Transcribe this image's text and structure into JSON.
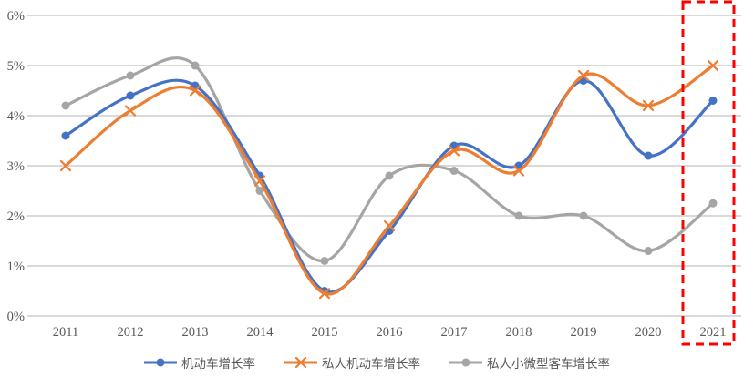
{
  "chart_data": {
    "type": "line",
    "title": "",
    "xlabel": "",
    "ylabel": "",
    "x_categories": [
      "2011",
      "2012",
      "2013",
      "2014",
      "2015",
      "2016",
      "2017",
      "2018",
      "2019",
      "2020",
      "2021"
    ],
    "y_ticks": [
      "0%",
      "1%",
      "2%",
      "3%",
      "4%",
      "5%",
      "6%"
    ],
    "ylim": [
      0,
      6
    ],
    "unit": "%",
    "grid": true,
    "line_style": "smooth",
    "legend_position": "bottom",
    "series": [
      {
        "name": "机动车增长率",
        "color": "#4472C4",
        "marker": "circle",
        "values": [
          3.6,
          4.4,
          4.6,
          2.8,
          0.5,
          1.7,
          3.4,
          3.0,
          4.7,
          3.2,
          4.3
        ]
      },
      {
        "name": "私人机动车增长率",
        "color": "#ED7D31",
        "marker": "x",
        "values": [
          3.0,
          4.1,
          4.5,
          2.7,
          0.45,
          1.8,
          3.3,
          2.9,
          4.8,
          4.2,
          5.0
        ]
      },
      {
        "name": "私人小微型客车增长率",
        "color": "#A5A5A5",
        "marker": "circle",
        "values": [
          4.2,
          4.8,
          5.0,
          2.5,
          1.1,
          2.8,
          2.9,
          2.0,
          2.0,
          1.3,
          2.25
        ]
      }
    ],
    "annotation": {
      "type": "highlight-box",
      "target_x_category": "2021",
      "color": "#FF0000",
      "style": "dashed"
    },
    "style": {
      "gridline_color": "#D9D9D9",
      "axis_text_color": "#595959",
      "background": "#FFFFFF"
    }
  }
}
